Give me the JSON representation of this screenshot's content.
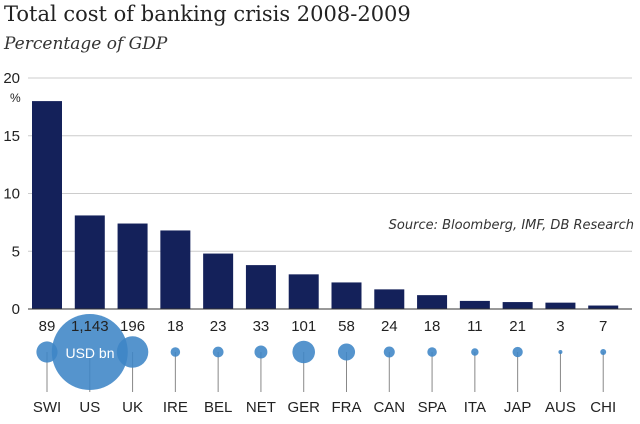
{
  "chart_data": {
    "type": "bar",
    "title": "Total cost of banking crisis 2008-2009",
    "subtitle": "Percentage of GDP",
    "y_unit": "%",
    "source": "Source: Bloomberg, IMF, DB Research",
    "ylim": [
      0,
      20
    ],
    "yticks": [
      0,
      5,
      10,
      15,
      20
    ],
    "grid": true,
    "categories": [
      "SWI",
      "US",
      "UK",
      "IRE",
      "BEL",
      "NET",
      "GER",
      "FRA",
      "CAN",
      "SPA",
      "ITA",
      "JAP",
      "AUS",
      "CHI"
    ],
    "values": [
      18.0,
      8.1,
      7.4,
      6.8,
      4.8,
      3.8,
      3.0,
      2.3,
      1.7,
      1.2,
      0.7,
      0.6,
      0.55,
      0.3
    ],
    "bubbles": {
      "unit_label": "USD bn",
      "labels": [
        "89",
        "1,143",
        "196",
        "18",
        "23",
        "33",
        "101",
        "58",
        "24",
        "18",
        "11",
        "21",
        "3",
        "7"
      ],
      "values": [
        89,
        1143,
        196,
        18,
        23,
        33,
        101,
        58,
        24,
        18,
        11,
        21,
        3,
        7
      ]
    },
    "colors": {
      "bar": "#14215a",
      "bubble": "#3d85c6",
      "grid": "#cccccc"
    }
  }
}
